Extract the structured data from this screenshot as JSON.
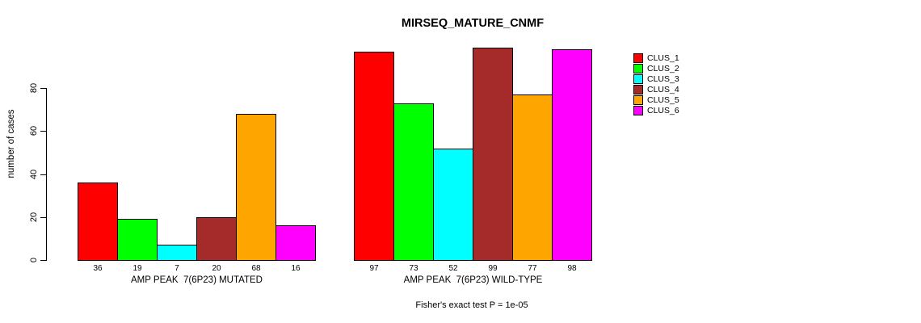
{
  "title": "MIRSEQ_MATURE_CNMF",
  "footer": "Fisher's exact test P = 1e-05",
  "chart_data": {
    "type": "bar",
    "title": "MIRSEQ_MATURE_CNMF",
    "xlabel": "",
    "ylabel": "number of cases",
    "yticks": [
      0,
      20,
      40,
      60,
      80
    ],
    "ylim": [
      0,
      100
    ],
    "grid": false,
    "legend_position": "right",
    "categories": [
      "CLUS_1",
      "CLUS_2",
      "CLUS_3",
      "CLUS_4",
      "CLUS_5",
      "CLUS_6"
    ],
    "colors": [
      "#ff0000",
      "#00ff00",
      "#00ffff",
      "#a52a2a",
      "#ffa500",
      "#ff00ff"
    ],
    "groups": [
      {
        "label": "AMP PEAK  7(6P23) MUTATED",
        "values": [
          36,
          19,
          7,
          20,
          68,
          16
        ]
      },
      {
        "label": "AMP PEAK  7(6P23) WILD-TYPE",
        "values": [
          97,
          73,
          52,
          99,
          77,
          98
        ]
      }
    ],
    "annotation": "Fisher's exact test P = 1e-05"
  }
}
